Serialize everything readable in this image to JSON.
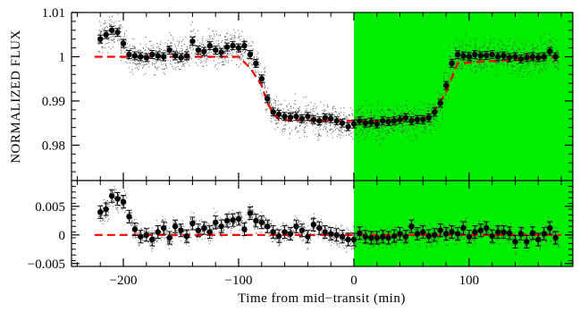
{
  "chart_data": {
    "type": "scatter",
    "colors": {
      "background": "#ffffff",
      "highlight": "#00ee00",
      "model": "#ff0000",
      "points": "#000000",
      "raw": "#555555"
    },
    "xlabel": "Time from mid−transit (min)",
    "xlim": [
      -245,
      190
    ],
    "xticks": [
      -200,
      -100,
      0,
      100
    ],
    "xtick_labels": [
      "−200",
      "−100",
      "0",
      "100"
    ],
    "highlight_region": {
      "x_from": 0,
      "x_to": 190
    },
    "top_panel": {
      "ylabel": "NORMALIZED FLUX",
      "ylim": [
        0.972,
        1.01
      ],
      "yticks": [
        0.98,
        0.99,
        1,
        1.01
      ],
      "ytick_labels": [
        "0.98",
        "0.99",
        "1",
        "1.01"
      ],
      "model": {
        "x": [
          -225,
          -100,
          -90,
          -80,
          -75,
          -70,
          -65,
          0,
          60,
          70,
          80,
          90,
          180
        ],
        "y": [
          1.0,
          1.0,
          0.9975,
          0.9935,
          0.9895,
          0.9872,
          0.9857,
          0.9855,
          0.9858,
          0.9878,
          0.992,
          0.9985,
          1.0
        ]
      },
      "points": {
        "x": [
          -220,
          -215,
          -210,
          -205,
          -200,
          -195,
          -190,
          -185,
          -180,
          -175,
          -170,
          -165,
          -160,
          -155,
          -150,
          -145,
          -140,
          -135,
          -130,
          -125,
          -120,
          -115,
          -110,
          -105,
          -100,
          -95,
          -90,
          -85,
          -80,
          -75,
          -70,
          -65,
          -60,
          -55,
          -50,
          -45,
          -40,
          -35,
          -30,
          -25,
          -20,
          -15,
          -10,
          -5,
          0,
          5,
          10,
          15,
          20,
          25,
          30,
          35,
          40,
          45,
          50,
          55,
          60,
          65,
          70,
          75,
          80,
          85,
          90,
          95,
          100,
          105,
          110,
          115,
          120,
          125,
          130,
          135,
          140,
          145,
          150,
          155,
          160,
          165,
          170,
          175
        ],
        "y": [
          1.004,
          1.005,
          1.006,
          1.0055,
          1.003,
          1.0005,
          1.0002,
          1.0,
          0.9998,
          1.0005,
          1.0002,
          1.0,
          1.0015,
          1.0002,
          0.9998,
          1.0002,
          1.0035,
          1.0015,
          1.0012,
          1.0025,
          1.0015,
          1.001,
          1.0022,
          1.0025,
          1.002,
          1.0025,
          1.0005,
          0.9985,
          0.995,
          0.9905,
          0.9875,
          0.987,
          0.9865,
          0.9863,
          0.9865,
          0.986,
          0.9865,
          0.9858,
          0.9855,
          0.9862,
          0.986,
          0.9855,
          0.985,
          0.9842,
          0.9848,
          0.9855,
          0.985,
          0.9852,
          0.9848,
          0.9855,
          0.9853,
          0.9855,
          0.9858,
          0.9862,
          0.9855,
          0.9858,
          0.9858,
          0.9862,
          0.9875,
          0.9895,
          0.9935,
          0.9985,
          1.0005,
          1.0002,
          1.0,
          1.0005,
          1.0002,
          1.0003,
          1.0005,
          1.0,
          1.0002,
          0.9998,
          1.0,
          0.9995,
          0.9998,
          1.0,
          0.9998,
          1.0,
          1.0012,
          1.0
        ],
        "err": 0.0009
      }
    },
    "bottom_panel": {
      "ylim": [
        -0.0055,
        0.0095
      ],
      "yticks": [
        -0.005,
        0,
        0.005
      ],
      "ytick_labels": [
        "−0.005",
        "0",
        "0.005"
      ],
      "model": {
        "x": [
          -225,
          180
        ],
        "y": [
          0,
          0
        ]
      },
      "points": {
        "x": [
          -220,
          -215,
          -210,
          -205,
          -200,
          -195,
          -190,
          -185,
          -180,
          -175,
          -170,
          -165,
          -160,
          -155,
          -150,
          -145,
          -140,
          -135,
          -130,
          -125,
          -120,
          -115,
          -110,
          -105,
          -100,
          -95,
          -90,
          -85,
          -80,
          -75,
          -70,
          -65,
          -60,
          -55,
          -50,
          -45,
          -40,
          -35,
          -30,
          -25,
          -20,
          -15,
          -10,
          -5,
          0,
          5,
          10,
          15,
          20,
          25,
          30,
          35,
          40,
          45,
          50,
          55,
          60,
          65,
          70,
          75,
          80,
          85,
          90,
          95,
          100,
          105,
          110,
          115,
          120,
          125,
          130,
          135,
          140,
          145,
          150,
          155,
          160,
          165,
          170,
          175
        ],
        "y": [
          0.004,
          0.0045,
          0.0068,
          0.0063,
          0.0058,
          0.0032,
          0.001,
          -0.0003,
          0.0,
          -0.0008,
          0.0005,
          0.0012,
          -0.0005,
          0.0015,
          0.0008,
          -0.0002,
          0.002,
          0.0008,
          0.0012,
          0.0005,
          0.0022,
          0.0015,
          0.0025,
          0.0026,
          0.0028,
          0.001,
          0.0038,
          0.0025,
          0.0022,
          0.0015,
          0.0005,
          -0.0002,
          0.0005,
          0.0002,
          0.0015,
          0.0008,
          -0.0003,
          0.0018,
          0.0012,
          0.0005,
          0.0002,
          0.0,
          -0.0003,
          -0.0008,
          -0.0008,
          0.0003,
          -0.0003,
          -0.0005,
          -0.0005,
          -0.0003,
          -0.0005,
          -0.0002,
          0.0002,
          -0.0003,
          0.0015,
          0.0002,
          0.0005,
          -0.0002,
          0.0,
          0.0008,
          0.0002,
          0.0005,
          0.0002,
          0.0012,
          -0.0003,
          0.0005,
          0.0008,
          0.0012,
          -0.0002,
          0.0005,
          0.0005,
          0.0003,
          -0.0012,
          0.0002,
          -0.0012,
          0.0003,
          -0.0008,
          0.0002,
          0.0012,
          -0.0005
        ],
        "err": 0.0011
      }
    }
  }
}
